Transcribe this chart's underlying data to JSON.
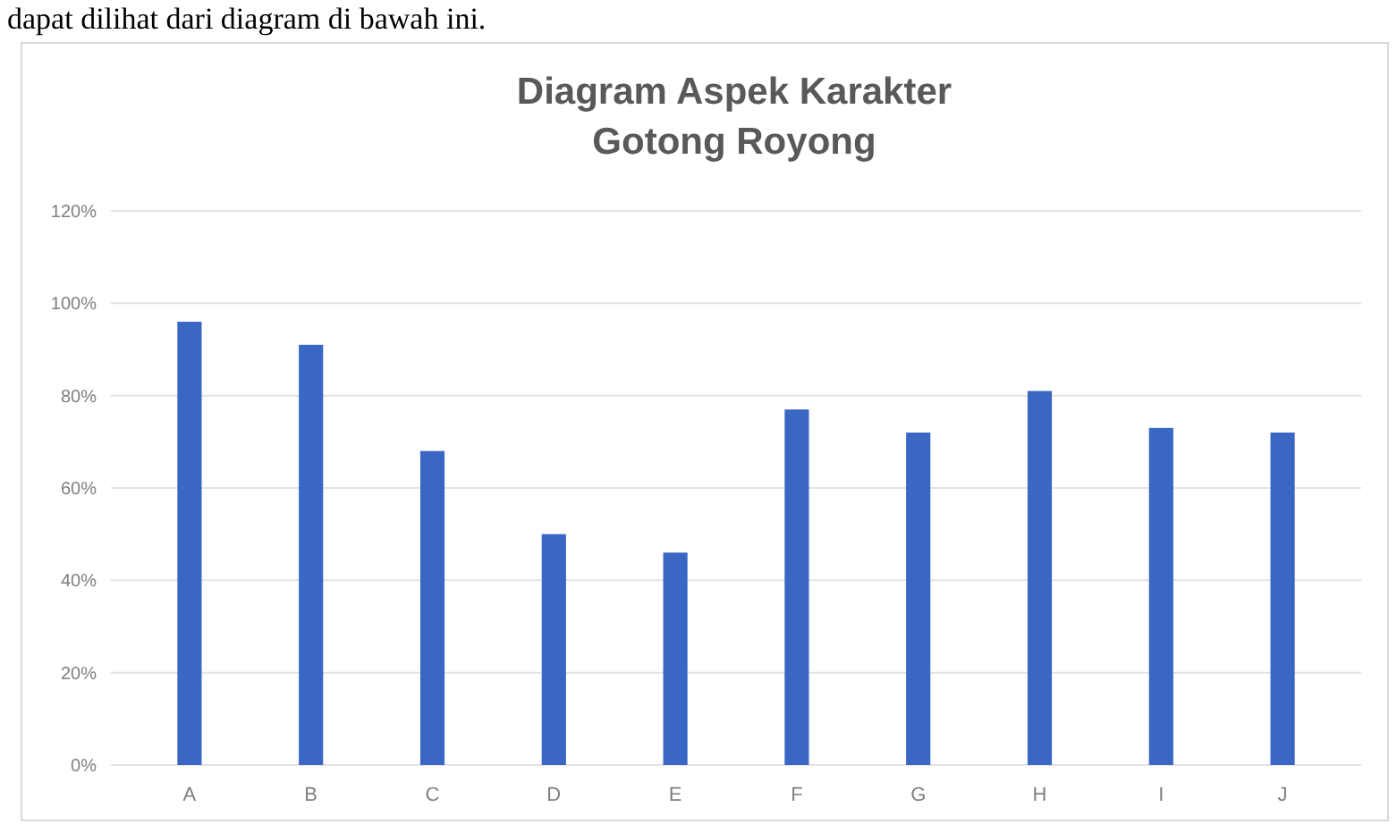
{
  "chart_data": {
    "type": "bar",
    "title": "Diagram Aspek Karakter\nGotong Royong",
    "annotations": [
      "dapat dilihat dari diagram di bawah ini."
    ],
    "categories": [
      "A",
      "B",
      "C",
      "D",
      "E",
      "F",
      "G",
      "H",
      "I",
      "J"
    ],
    "values": [
      96,
      91,
      68,
      50,
      46,
      77,
      72,
      81,
      73,
      72
    ],
    "color": "#3a66c4",
    "ylim": [
      0,
      120
    ],
    "yticks": [
      {
        "value": 0,
        "label": "0%"
      },
      {
        "value": 20,
        "label": "20%"
      },
      {
        "value": 40,
        "label": "40%"
      },
      {
        "value": 60,
        "label": "60%"
      },
      {
        "value": 80,
        "label": "80%"
      },
      {
        "value": 100,
        "label": "100%"
      },
      {
        "value": 120,
        "label": "120%"
      }
    ],
    "grid": "y"
  }
}
